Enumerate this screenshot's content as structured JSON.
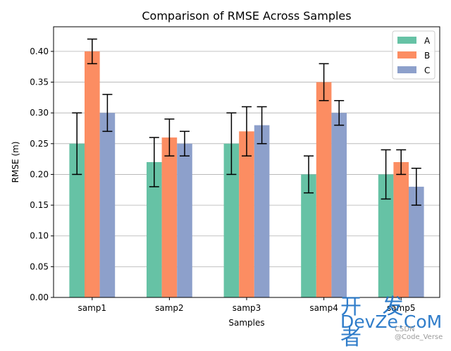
{
  "chart_data": {
    "type": "bar",
    "title": "Comparison of RMSE Across Samples",
    "xlabel": "Samples",
    "ylabel": "RMSE (m)",
    "categories": [
      "samp1",
      "samp2",
      "samp3",
      "samp4",
      "samp5"
    ],
    "series": [
      {
        "name": "A",
        "color": "#66c2a5",
        "values": [
          0.25,
          0.22,
          0.25,
          0.2,
          0.2
        ],
        "errors": [
          0.05,
          0.04,
          0.05,
          0.03,
          0.04
        ]
      },
      {
        "name": "B",
        "color": "#fc8d62",
        "values": [
          0.4,
          0.26,
          0.27,
          0.35,
          0.22
        ],
        "errors": [
          0.02,
          0.03,
          0.04,
          0.03,
          0.02
        ]
      },
      {
        "name": "C",
        "color": "#8da0cb",
        "values": [
          0.3,
          0.25,
          0.28,
          0.3,
          0.18
        ],
        "errors": [
          0.03,
          0.02,
          0.03,
          0.02,
          0.03
        ]
      }
    ],
    "ylim": [
      0,
      0.44
    ],
    "yticks": [
      "0.00",
      "0.05",
      "0.10",
      "0.15",
      "0.20",
      "0.25",
      "0.30",
      "0.35",
      "0.40"
    ],
    "grid": "y",
    "legend": "top-right"
  },
  "watermark": {
    "cn": "开 发 者",
    "en": "DevZe.CoM",
    "small": "CSDN @Code_Verse"
  }
}
